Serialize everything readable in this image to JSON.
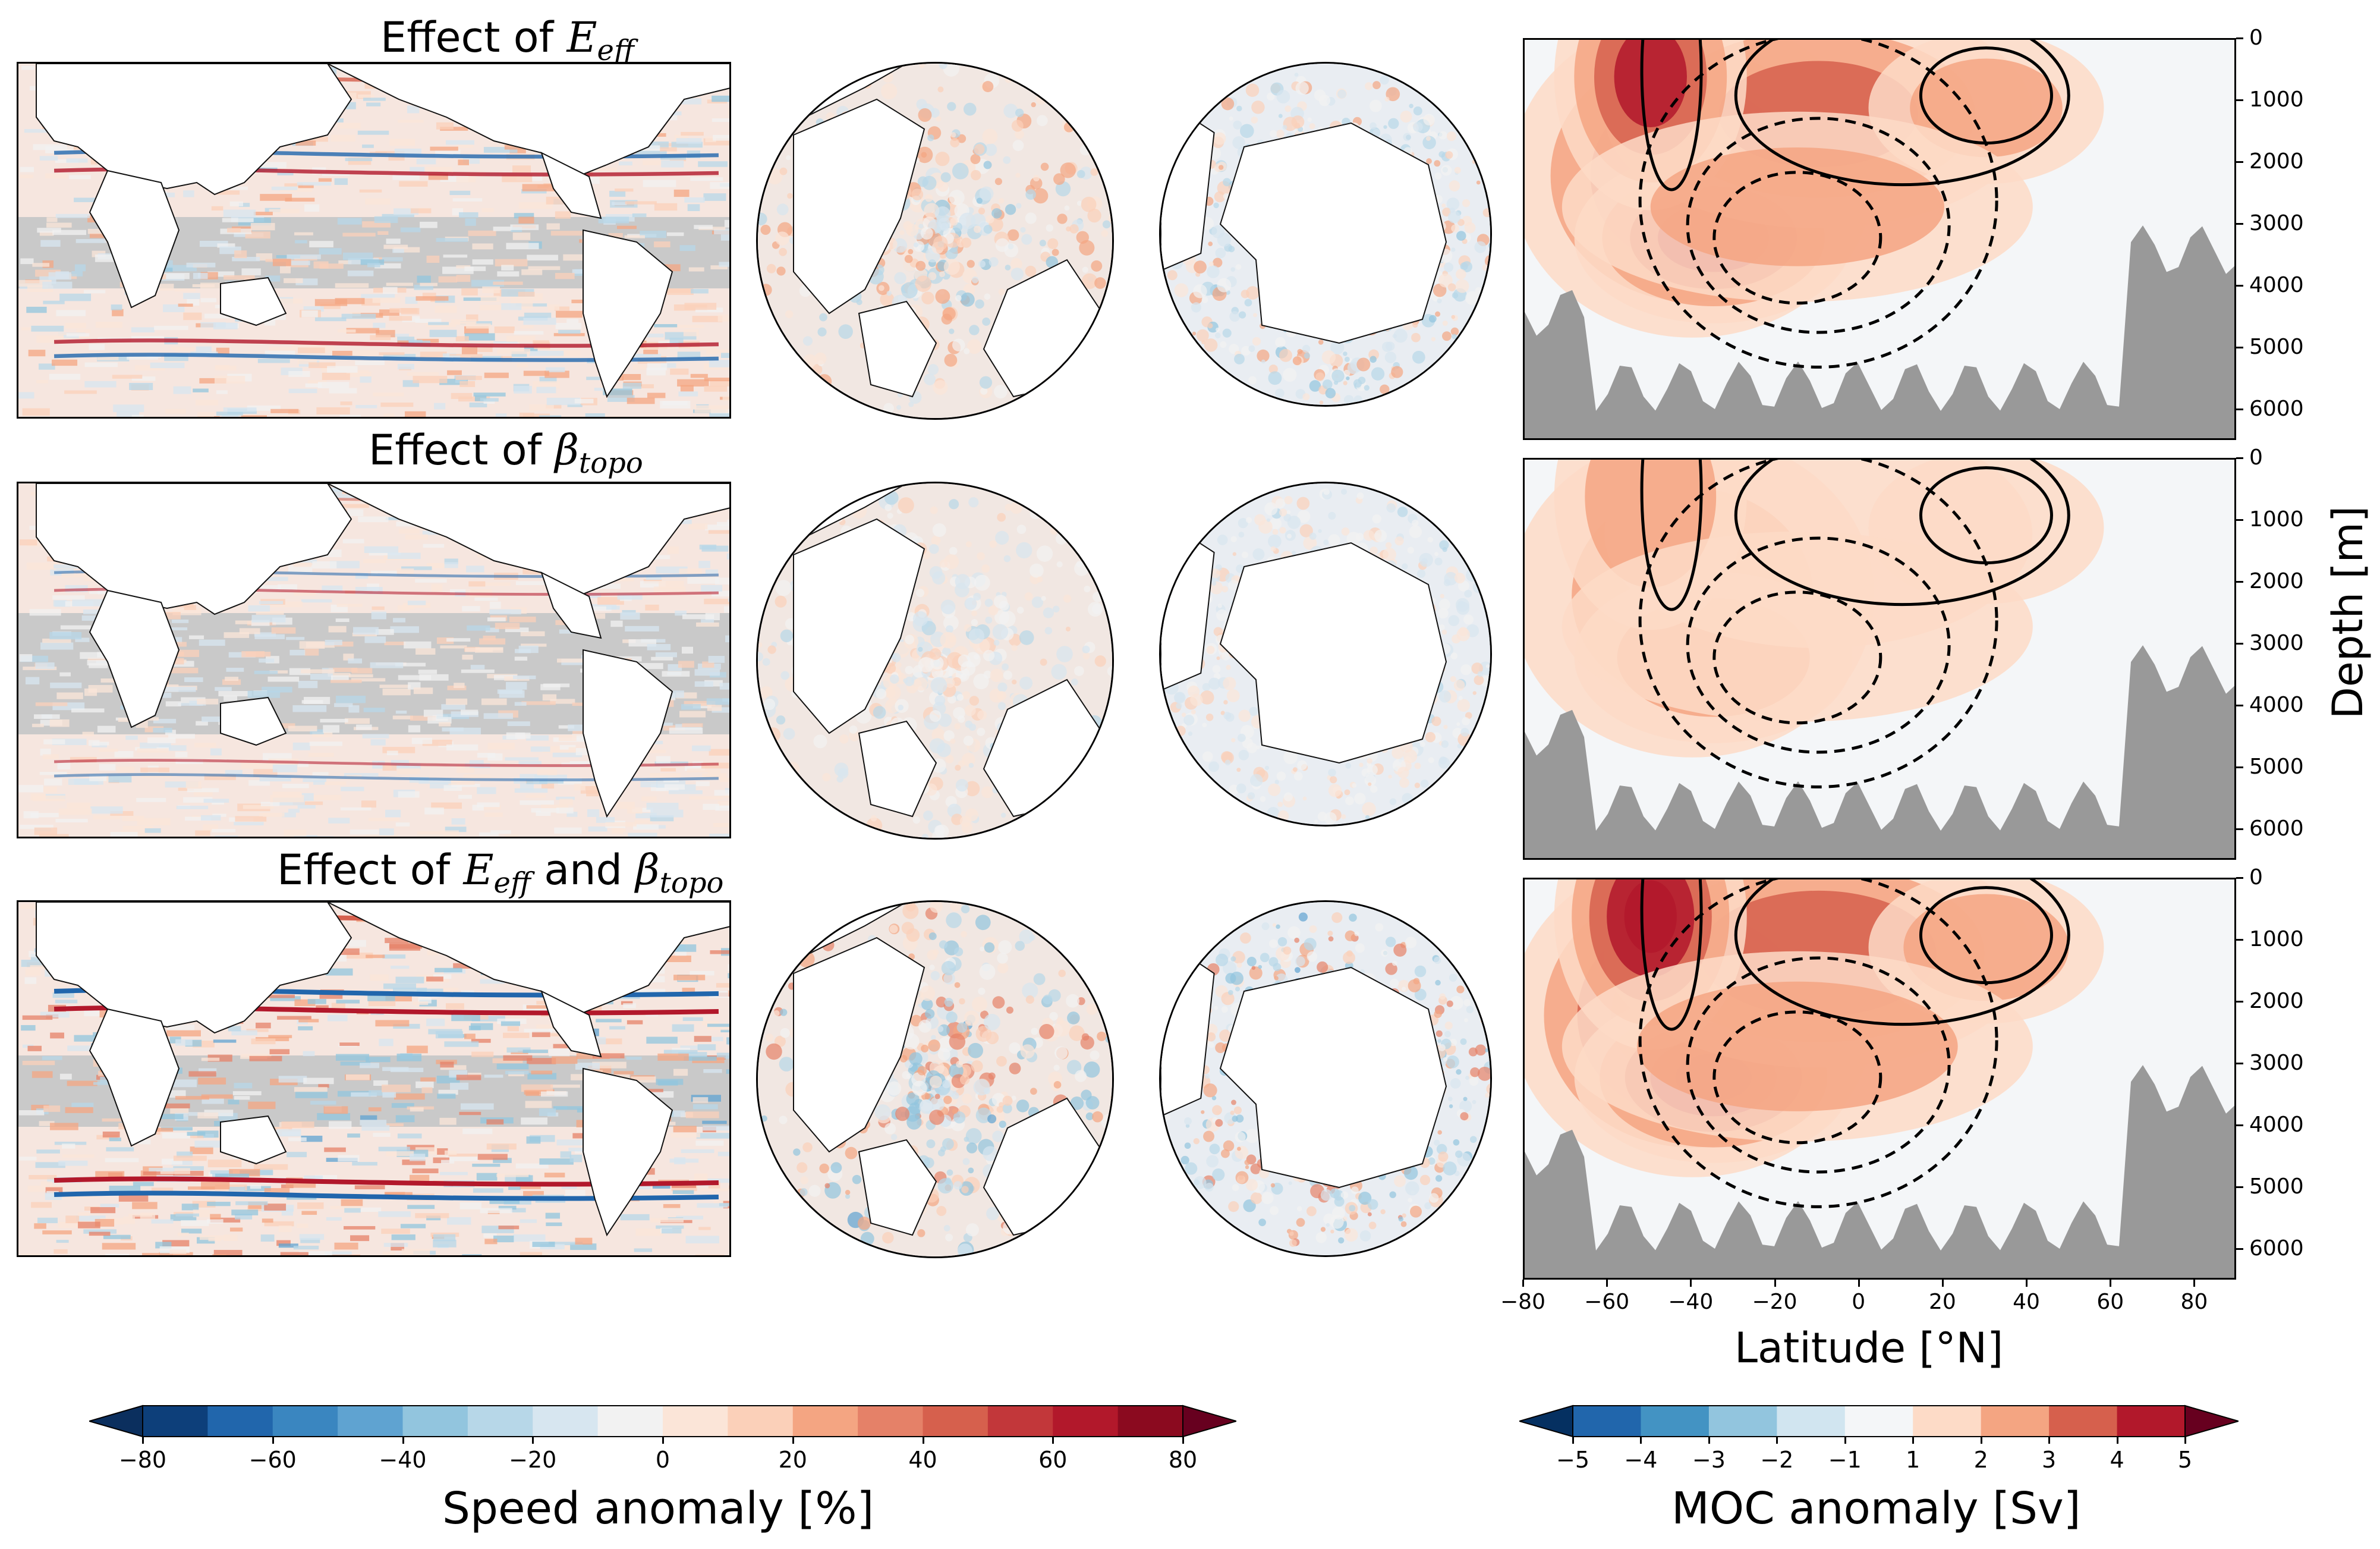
{
  "rows": [
    {
      "title_prefix": "Effect of ",
      "sym1": "E",
      "sub1": "eff",
      "joiner": "",
      "sym2": "",
      "sub2": ""
    },
    {
      "title_prefix": "Effect of ",
      "sym1": "β",
      "sub1": "topo",
      "joiner": "",
      "sym2": "",
      "sub2": ""
    },
    {
      "title_prefix": "Effect of ",
      "sym1": "E",
      "sub1": "eff",
      "joiner": " and ",
      "sym2": "β",
      "sub2": "topo"
    }
  ],
  "moc_axes": {
    "ylabel": "Depth [m]",
    "xlabel": "Latitude [°N]",
    "yticks": [
      "0",
      "1000",
      "2000",
      "3000",
      "4000",
      "5000",
      "6000"
    ],
    "xticks": [
      "−80",
      "−60",
      "−40",
      "−20",
      "0",
      "20",
      "40",
      "60",
      "80"
    ]
  },
  "colorbars": {
    "speed": {
      "label": "Speed anomaly [%]",
      "ticks": [
        "−80",
        "−60",
        "−40",
        "−20",
        "0",
        "20",
        "40",
        "60",
        "80"
      ],
      "colors": [
        "#0d3f7a",
        "#2166ac",
        "#3a86c0",
        "#5fa3d1",
        "#92c5de",
        "#b7d7e8",
        "#d7e6f0",
        "#f2f2f2",
        "#fbe5d8",
        "#fbd0b9",
        "#f4a582",
        "#e58168",
        "#d6604d",
        "#c2373a",
        "#b2182b",
        "#8b0a1f"
      ],
      "ext_low": "#0b2f5e",
      "ext_high": "#67001f"
    },
    "moc": {
      "label": "MOC anomaly [Sv]",
      "ticks": [
        "−5",
        "−4",
        "−3",
        "−2",
        "−1",
        "1",
        "2",
        "3",
        "4",
        "5"
      ],
      "colors": [
        "#2166ac",
        "#4393c3",
        "#92c5de",
        "#d1e5f0",
        "#f4f6f8",
        "#fddbc7",
        "#f4a582",
        "#d6604d",
        "#b2182b"
      ],
      "ext_low": "#053061",
      "ext_high": "#67001f"
    }
  },
  "chart_data": {
    "type": "heatmap",
    "panels": [
      "Speed anomaly maps (global, Arctic, Antarctic)",
      "Meridional overturning circulation anomaly vs latitude and depth"
    ],
    "moc": {
      "xlabel": "Latitude [°N]",
      "ylabel": "Depth [m]",
      "xlim": [
        -80,
        90
      ],
      "ylim": [
        6500,
        0
      ],
      "units": "Sv",
      "clim": [
        -5,
        5
      ]
    },
    "speed": {
      "units": "%",
      "clim": [
        -80,
        80
      ]
    }
  }
}
